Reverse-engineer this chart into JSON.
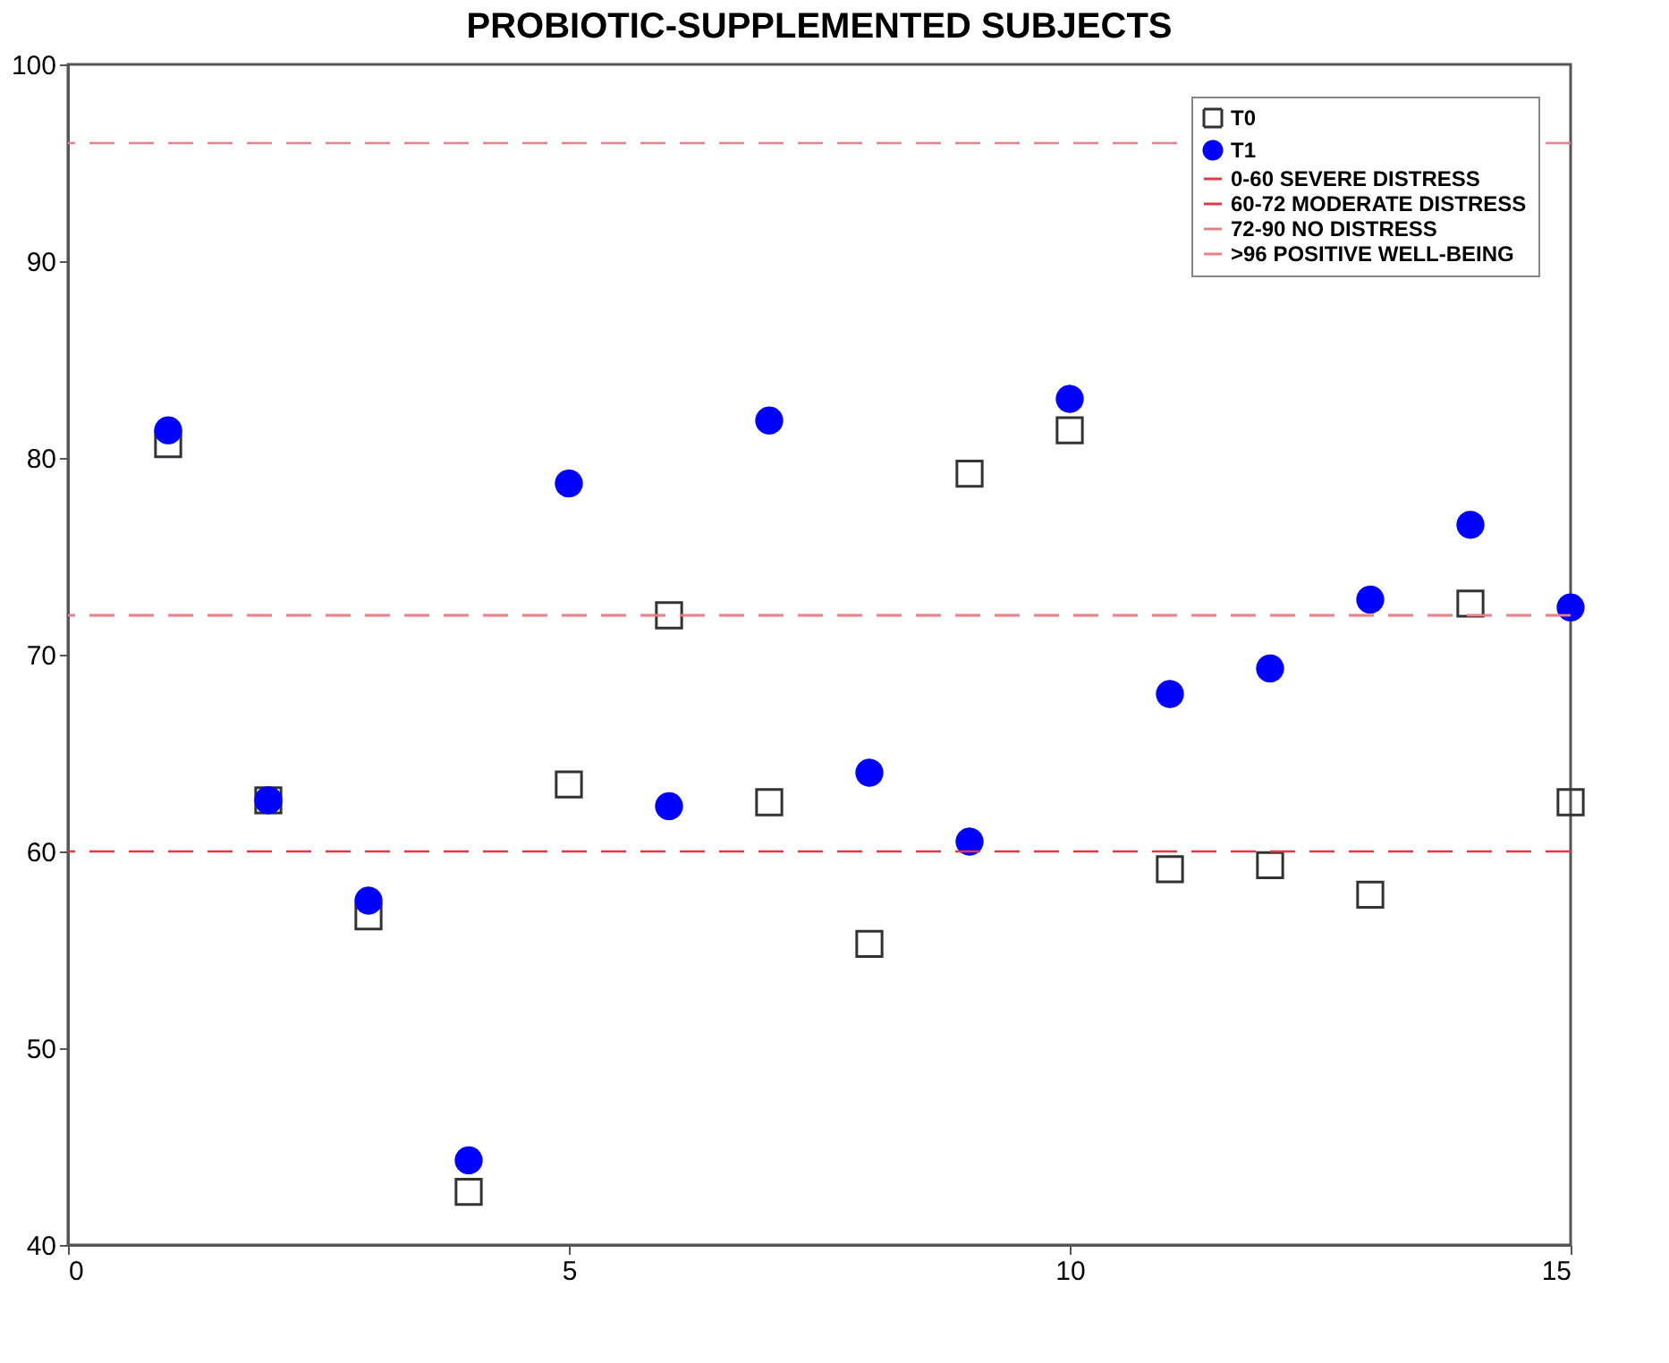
{
  "chart_data": {
    "type": "scatter",
    "title": "PROBIOTIC-SUPPLEMENTED SUBJECTS",
    "x": [
      1,
      2,
      3,
      4,
      5,
      6,
      7,
      8,
      9,
      10,
      11,
      12,
      13,
      14,
      15
    ],
    "series": [
      {
        "name": "T0",
        "color": "#333333",
        "marker": "square",
        "values": [
          80.7,
          62.6,
          56.7,
          42.7,
          63.4,
          72.0,
          62.5,
          55.3,
          79.2,
          81.4,
          59.1,
          59.3,
          57.8,
          72.6,
          62.5
        ]
      },
      {
        "name": "T1",
        "color": "#0000ff",
        "marker": "circle",
        "values": [
          81.4,
          62.6,
          57.5,
          44.3,
          78.7,
          62.3,
          81.9,
          64.0,
          60.5,
          83.0,
          68.0,
          69.3,
          72.8,
          76.6,
          72.4
        ]
      }
    ],
    "ref_lines": [
      {
        "axis": "y",
        "value": 60,
        "label": "0-60 SEVERE DISTRESS",
        "color": "#e03a44",
        "line_style": "dashed"
      },
      {
        "axis": "y",
        "value": 72,
        "label": "60-72 MODERATE DISTRESS",
        "color": "#e03a44",
        "line_style": "dashed"
      },
      {
        "axis": "y",
        "value": 72,
        "label": "72-90 NO DISTRESS",
        "color": "#e8808a",
        "line_style": "dashed"
      },
      {
        "axis": "y",
        "value": 96,
        "label": ">96 POSITIVE WELL-BEING",
        "color": "#e8808a",
        "line_style": "dashed"
      }
    ],
    "xlim": [
      0,
      15
    ],
    "xticks": [
      0,
      5,
      10,
      15
    ],
    "ylim": [
      40,
      100
    ],
    "yticks": [
      40,
      50,
      60,
      70,
      80,
      90,
      100
    ],
    "grid": false,
    "legend": "top right"
  }
}
